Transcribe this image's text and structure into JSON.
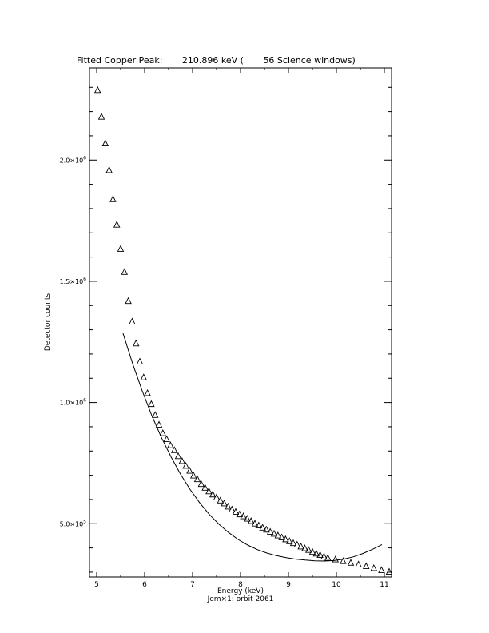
{
  "chart_data": {
    "type": "scatter",
    "title": "Fitted Copper Peak:       210.896 keV (       56 Science windows)",
    "xlabel": "Energy (keV)",
    "ylabel": "Detector counts",
    "footer": "Jem×1: orbit 2061",
    "xlim": [
      4.85,
      11.15
    ],
    "ylim": [
      280000,
      2380000
    ],
    "x_ticks": [
      5,
      6,
      7,
      8,
      9,
      10,
      11
    ],
    "x_tick_labels": [
      "5",
      "6",
      "7",
      "8",
      "9",
      "10",
      "11"
    ],
    "y_ticks": [
      500000,
      1000000,
      1500000,
      2000000
    ],
    "y_tick_labels": [
      {
        "mantissa": "5.0×10",
        "exp": "5"
      },
      {
        "mantissa": "1.0×10",
        "exp": "6"
      },
      {
        "mantissa": "1.5×10",
        "exp": "6"
      },
      {
        "mantissa": "2.0×10",
        "exp": "6"
      }
    ],
    "series": [
      {
        "marker": "triangle",
        "x": [
          5.02,
          5.1,
          5.18,
          5.26,
          5.34,
          5.42,
          5.5,
          5.58,
          5.66,
          5.74,
          5.82,
          5.9,
          5.98,
          6.06,
          6.14,
          6.22,
          6.3,
          6.38,
          6.46,
          6.54,
          6.62,
          6.7,
          6.78,
          6.86,
          6.94,
          7.02,
          7.1,
          7.18,
          7.26,
          7.34,
          7.42,
          7.5,
          7.58,
          7.66,
          7.74,
          7.82,
          7.9,
          7.98,
          8.06,
          8.14,
          8.22,
          8.3,
          8.38,
          8.46,
          8.54,
          8.62,
          8.7,
          8.78,
          8.86,
          8.94,
          9.02,
          9.1,
          9.18,
          9.26,
          9.34,
          9.42,
          9.5,
          9.58,
          9.66,
          9.74,
          9.82,
          9.98,
          10.14,
          10.3,
          10.46,
          10.62,
          10.78,
          10.94,
          11.1
        ],
        "y": [
          2290000,
          2180000,
          2070000,
          1960000,
          1840000,
          1735000,
          1635000,
          1540000,
          1420000,
          1335000,
          1245000,
          1170000,
          1105000,
          1040000,
          995000,
          950000,
          910000,
          875000,
          850000,
          825000,
          805000,
          780000,
          760000,
          740000,
          720000,
          700000,
          685000,
          665000,
          650000,
          635000,
          622000,
          610000,
          597000,
          585000,
          572000,
          560000,
          550000,
          540000,
          532000,
          522000,
          512000,
          502000,
          494000,
          485000,
          477000,
          468000,
          460000,
          453000,
          445000,
          437000,
          429000,
          421000,
          415000,
          407000,
          400000,
          393000,
          385000,
          378000,
          372000,
          366000,
          360000,
          354000,
          347000,
          340000,
          333000,
          326000,
          318000,
          310000,
          303000
        ]
      },
      {
        "marker": "line",
        "x": [
          5.55,
          5.75,
          5.95,
          6.15,
          6.35,
          6.55,
          6.75,
          6.95,
          7.15,
          7.35,
          7.55,
          7.75,
          7.95,
          8.15,
          8.35,
          8.55,
          8.75,
          8.95,
          9.15,
          9.35,
          9.55,
          9.75,
          9.95,
          10.15,
          10.35,
          10.55,
          10.75,
          10.95
        ],
        "y": [
          1285000,
          1160000,
          1048000,
          946000,
          856000,
          776000,
          704000,
          641000,
          586000,
          538000,
          498000,
          464000,
          435000,
          412000,
          393000,
          379000,
          368000,
          360000,
          354000,
          350000,
          347000,
          346000,
          348000,
          354000,
          363000,
          377000,
          394000,
          414000
        ]
      }
    ]
  }
}
